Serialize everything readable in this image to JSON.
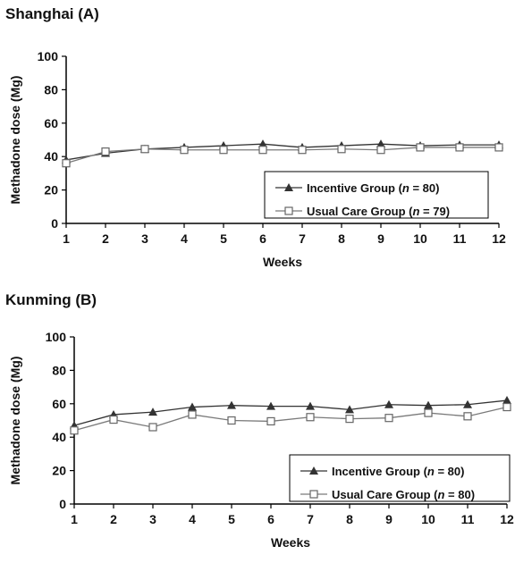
{
  "chart_data": [
    {
      "type": "line",
      "title": "Shanghai (A)",
      "xlabel": "Weeks",
      "ylabel": "Methadone dose (Mg)",
      "x": [
        1,
        2,
        3,
        4,
        5,
        6,
        7,
        8,
        9,
        10,
        11,
        12
      ],
      "ylim": [
        0,
        100
      ],
      "yticks": [
        0,
        20,
        40,
        60,
        80,
        100
      ],
      "grid": false,
      "legend_position": "bottom-right",
      "series": [
        {
          "name_prefix": "Incentive Group (",
          "name_var": "n",
          "name_suffix": " = 80)",
          "marker": "filled-triangle",
          "values": [
            38,
            42,
            44.5,
            45.5,
            46.5,
            47.5,
            45.5,
            46.5,
            47.5,
            46.5,
            47,
            47
          ]
        },
        {
          "name_prefix": "Usual Care Group (",
          "name_var": "n",
          "name_suffix": " = 79)",
          "marker": "open-square",
          "values": [
            36,
            43,
            44.5,
            44,
            44,
            44,
            44,
            44.5,
            44,
            45.5,
            45.5,
            45.5
          ]
        }
      ]
    },
    {
      "type": "line",
      "title": "Kunming (B)",
      "xlabel": "Weeks",
      "ylabel": "Methadone dose (Mg)",
      "x": [
        1,
        2,
        3,
        4,
        5,
        6,
        7,
        8,
        9,
        10,
        11,
        12
      ],
      "ylim": [
        0,
        100
      ],
      "yticks": [
        0,
        20,
        40,
        60,
        80,
        100
      ],
      "grid": false,
      "legend_position": "bottom-right",
      "series": [
        {
          "name_prefix": "Incentive Group (",
          "name_var": "n",
          "name_suffix": " = 80)",
          "marker": "filled-triangle",
          "values": [
            47,
            53.5,
            55,
            58,
            59,
            58.5,
            58.5,
            56.5,
            59.5,
            59,
            59.5,
            62
          ]
        },
        {
          "name_prefix": "Usual Care Group (",
          "name_var": "n",
          "name_suffix": " = 80)",
          "marker": "open-square",
          "values": [
            44,
            50.5,
            46,
            53.5,
            50,
            49.5,
            52,
            51,
            51.5,
            54.5,
            52.5,
            58
          ]
        }
      ]
    }
  ]
}
